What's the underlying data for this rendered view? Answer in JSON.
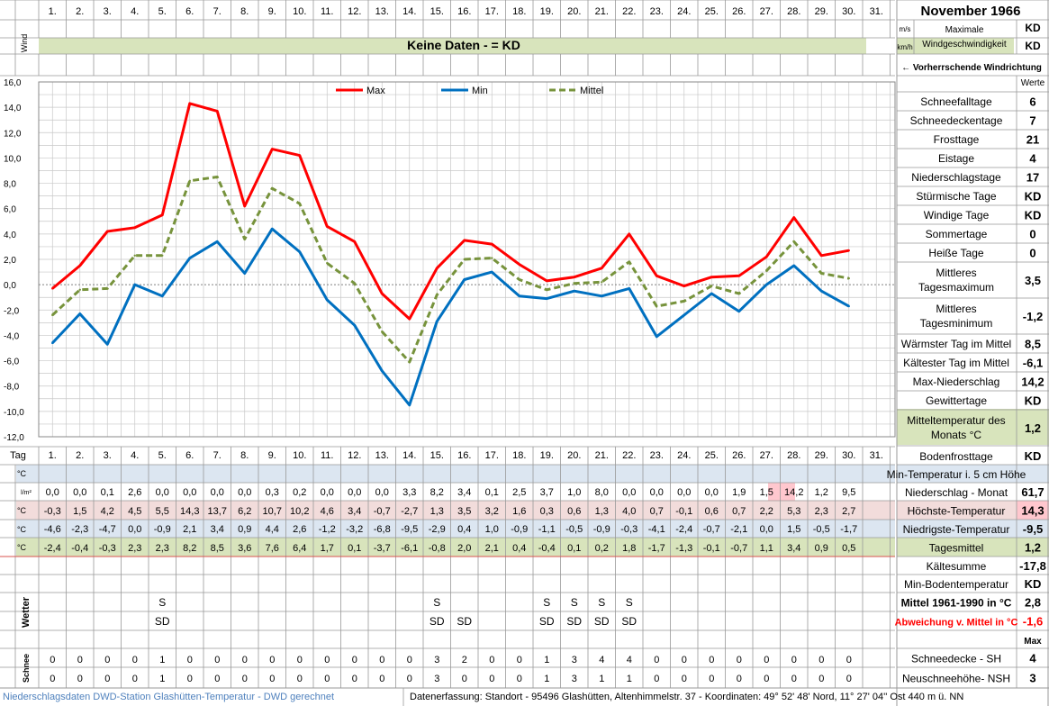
{
  "header": {
    "title": "November 1966",
    "wind_label": "Wind",
    "unit_ms": "m/s",
    "unit_kmh": "km/h",
    "max_wind_line1": "Maximale",
    "max_wind_line2": "Windgeschwindigkeit",
    "max_wind_ms": "KD",
    "max_wind_kmh": "KD",
    "no_data": "Keine Daten -  = KD",
    "prevailing": "← Vorherrschende Windrichtung",
    "values_label": "Werte",
    "tag_label": "Tag"
  },
  "days": [
    "1.",
    "2.",
    "3.",
    "4.",
    "5.",
    "6.",
    "7.",
    "8.",
    "9.",
    "10.",
    "11.",
    "12.",
    "13.",
    "14.",
    "15.",
    "16.",
    "17.",
    "18.",
    "19.",
    "20.",
    "21.",
    "22.",
    "23.",
    "24.",
    "25.",
    "26.",
    "27.",
    "28.",
    "29.",
    "30.",
    "31."
  ],
  "chart_data": {
    "type": "line",
    "x": [
      1,
      2,
      3,
      4,
      5,
      6,
      7,
      8,
      9,
      10,
      11,
      12,
      13,
      14,
      15,
      16,
      17,
      18,
      19,
      20,
      21,
      22,
      23,
      24,
      25,
      26,
      27,
      28,
      29,
      30
    ],
    "ylim": [
      -12,
      16
    ],
    "y_ticks": [
      "16,0",
      "14,0",
      "12,0",
      "10,0",
      "8,0",
      "6,0",
      "4,0",
      "2,0",
      "0,0",
      "-2,0",
      "-4,0",
      "-6,0",
      "-8,0",
      "-10,0",
      "-12,0"
    ],
    "grid": true,
    "legend_position": "top",
    "series": [
      {
        "name": "Max",
        "color": "#ff0000",
        "dashed": false,
        "values": [
          -0.3,
          1.5,
          4.2,
          4.5,
          5.5,
          14.3,
          13.7,
          6.2,
          10.7,
          10.2,
          4.6,
          3.4,
          -0.7,
          -2.7,
          1.3,
          3.5,
          3.2,
          1.6,
          0.3,
          0.6,
          1.3,
          4.0,
          0.7,
          -0.1,
          0.6,
          0.7,
          2.2,
          5.3,
          2.3,
          2.7
        ]
      },
      {
        "name": "Min",
        "color": "#0070c0",
        "dashed": false,
        "values": [
          -4.6,
          -2.3,
          -4.7,
          0.0,
          -0.9,
          2.1,
          3.4,
          0.9,
          4.4,
          2.6,
          -1.2,
          -3.2,
          -6.8,
          -9.5,
          -2.9,
          0.4,
          1.0,
          -0.9,
          -1.1,
          -0.5,
          -0.9,
          -0.3,
          -4.1,
          -2.4,
          -0.7,
          -2.1,
          0.0,
          1.5,
          -0.5,
          -1.7
        ]
      },
      {
        "name": "Mittel",
        "color": "#77933c",
        "dashed": true,
        "values": [
          -2.4,
          -0.4,
          -0.3,
          2.3,
          2.3,
          8.2,
          8.5,
          3.6,
          7.6,
          6.4,
          1.7,
          0.1,
          -3.7,
          -6.1,
          -0.8,
          2.0,
          2.1,
          0.4,
          -0.4,
          0.1,
          0.2,
          1.8,
          -1.7,
          -1.3,
          -0.1,
          -0.7,
          1.1,
          3.4,
          0.9,
          0.5
        ]
      }
    ]
  },
  "table": {
    "unit_c": "°C",
    "unit_lm2": "l/m²",
    "precip": [
      "0,0",
      "0,0",
      "0,1",
      "2,6",
      "0,0",
      "0,0",
      "0,0",
      "0,0",
      "0,3",
      "0,2",
      "0,0",
      "0,0",
      "0,0",
      "3,3",
      "8,2",
      "3,4",
      "0,1",
      "2,5",
      "3,7",
      "1,0",
      "8,0",
      "0,0",
      "0,0",
      "0,0",
      "0,0",
      "1,9",
      "1,5",
      "14,2",
      "1,2",
      "9,5"
    ],
    "max": [
      "-0,3",
      "1,5",
      "4,2",
      "4,5",
      "5,5",
      "14,3",
      "13,7",
      "6,2",
      "10,7",
      "10,2",
      "4,6",
      "3,4",
      "-0,7",
      "-2,7",
      "1,3",
      "3,5",
      "3,2",
      "1,6",
      "0,3",
      "0,6",
      "1,3",
      "4,0",
      "0,7",
      "-0,1",
      "0,6",
      "0,7",
      "2,2",
      "5,3",
      "2,3",
      "2,7"
    ],
    "min": [
      "-4,6",
      "-2,3",
      "-4,7",
      "0,0",
      "-0,9",
      "2,1",
      "3,4",
      "0,9",
      "4,4",
      "2,6",
      "-1,2",
      "-3,2",
      "-6,8",
      "-9,5",
      "-2,9",
      "0,4",
      "1,0",
      "-0,9",
      "-1,1",
      "-0,5",
      "-0,9",
      "-0,3",
      "-4,1",
      "-2,4",
      "-0,7",
      "-2,1",
      "0,0",
      "1,5",
      "-0,5",
      "-1,7"
    ],
    "mean": [
      "-2,4",
      "-0,4",
      "-0,3",
      "2,3",
      "2,3",
      "8,2",
      "8,5",
      "3,6",
      "7,6",
      "6,4",
      "1,7",
      "0,1",
      "-3,7",
      "-6,1",
      "-0,8",
      "2,0",
      "2,1",
      "0,4",
      "-0,4",
      "0,1",
      "0,2",
      "1,8",
      "-1,7",
      "-1,3",
      "-0,1",
      "-0,7",
      "1,1",
      "3,4",
      "0,9",
      "0,5"
    ]
  },
  "weather": {
    "label": "Wetter",
    "row_s": [
      {
        "day": 5,
        "t": "S"
      },
      {
        "day": 15,
        "t": "S"
      },
      {
        "day": 19,
        "t": "S"
      },
      {
        "day": 20,
        "t": "S"
      },
      {
        "day": 21,
        "t": "S"
      },
      {
        "day": 22,
        "t": "S"
      }
    ],
    "row_sd": [
      {
        "day": 5,
        "t": "SD"
      },
      {
        "day": 15,
        "t": "SD"
      },
      {
        "day": 16,
        "t": "SD"
      },
      {
        "day": 19,
        "t": "SD"
      },
      {
        "day": 20,
        "t": "SD"
      },
      {
        "day": 21,
        "t": "SD"
      },
      {
        "day": 22,
        "t": "SD"
      }
    ]
  },
  "snow": {
    "label": "Schnee",
    "sh": [
      "0",
      "0",
      "0",
      "0",
      "1",
      "0",
      "0",
      "0",
      "0",
      "0",
      "0",
      "0",
      "0",
      "0",
      "3",
      "2",
      "0",
      "0",
      "1",
      "3",
      "4",
      "4",
      "0",
      "0",
      "0",
      "0",
      "0",
      "0",
      "0",
      "0"
    ],
    "nsh": [
      "0",
      "0",
      "0",
      "0",
      "1",
      "0",
      "0",
      "0",
      "0",
      "0",
      "0",
      "0",
      "0",
      "0",
      "3",
      "0",
      "0",
      "0",
      "1",
      "3",
      "1",
      "1",
      "0",
      "0",
      "0",
      "0",
      "0",
      "0",
      "0",
      "0"
    ]
  },
  "stats": [
    {
      "label": "Schneefalltage",
      "value": "6"
    },
    {
      "label": "Schneedeckentage",
      "value": "7"
    },
    {
      "label": "Frosttage",
      "value": "21"
    },
    {
      "label": "Eistage",
      "value": "4"
    },
    {
      "label": "Niederschlagstage",
      "value": "17"
    },
    {
      "label": "Stürmische Tage",
      "value": "KD"
    },
    {
      "label": "Windige Tage",
      "value": "KD"
    },
    {
      "label": "Sommertage",
      "value": "0"
    },
    {
      "label": "Heiße Tage",
      "value": "0"
    },
    {
      "label": "Mittleres Tagesmaximum",
      "value": "3,5"
    },
    {
      "label": "Mittleres Tagesminimum",
      "value": "-1,2"
    },
    {
      "label": "Wärmster Tag im Mittel",
      "value": "8,5"
    },
    {
      "label": "Kältester Tag im Mittel",
      "value": "-6,1"
    },
    {
      "label": "Max-Niederschlag",
      "value": "14,2"
    },
    {
      "label": "Gewittertage",
      "value": "KD"
    },
    {
      "label": "Mitteltemperatur des Monats °C",
      "value": "1,2"
    }
  ],
  "side_rows": [
    {
      "label": "Bodenfrosttage",
      "value": "KD"
    },
    {
      "label": "Min-Temperatur i. 5 cm Höhe",
      "value": ""
    },
    {
      "label": "Niederschlag - Monat",
      "value": "61,7"
    },
    {
      "label": "Höchste-Temperatur",
      "value": "14,3"
    },
    {
      "label": "Niedrigste-Temperatur",
      "value": "-9,5"
    },
    {
      "label": "Tagesmittel",
      "value": "1,2"
    },
    {
      "label": "Kältesumme",
      "value": "-17,8"
    },
    {
      "label": "Min-Bodentemperatur",
      "value": "KD"
    },
    {
      "label": "Mittel 1961-1990 in °C",
      "value": "2,8"
    },
    {
      "label": "Abweichung v. Mittel in °C",
      "value": "-1,6"
    },
    {
      "label": "",
      "value": "Max"
    },
    {
      "label": "Schneedecke -   SH",
      "value": "4"
    },
    {
      "label": "Neuschneehöhe-  NSH",
      "value": "3"
    }
  ],
  "colors": {
    "wind_band": "#d8e4bc",
    "blue_band": "#dce6f1",
    "red_band": "#f2dcdb",
    "green_band": "#d8e4bc",
    "max_value_bg": "#ffc7ce",
    "deviation_text": "#ff0000",
    "footer_text": "#4f81bd"
  },
  "footer": {
    "left": "Niederschlagsdaten DWD-Station Glashütten-Temperatur -  DWD gerechnet",
    "right": "Datenerfassung: Standort -  95496  Glashütten, Altenhimmelstr. 37 - Koordinaten:  49° 52' 48' Nord,  11° 27' 04'' Ost  440 m ü. NN"
  }
}
